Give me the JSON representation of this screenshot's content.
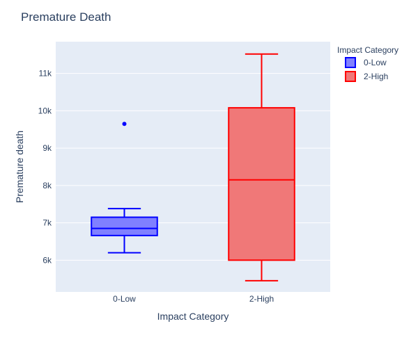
{
  "chart_data": {
    "type": "box",
    "title": "Premature Death",
    "xlabel": "Impact Category",
    "ylabel": "Premature death",
    "categories": [
      "0-Low",
      "2-High"
    ],
    "ylim": [
      5150,
      11850
    ],
    "yticks": [
      6000,
      7000,
      8000,
      9000,
      10000,
      11000
    ],
    "ytick_labels": [
      "6k",
      "7k",
      "8k",
      "9k",
      "10k",
      "11k"
    ],
    "grid": true,
    "legend": {
      "title": "Impact Category",
      "position": "top-right",
      "entries": [
        "0-Low",
        "2-High"
      ]
    },
    "series": [
      {
        "name": "0-Low",
        "category": "0-Low",
        "color": "#0000ff",
        "fill": "#8080ff",
        "min": 6200,
        "q1": 6660,
        "median": 6850,
        "q3": 7150,
        "max": 7380,
        "outliers": [
          9650
        ]
      },
      {
        "name": "2-High",
        "category": "2-High",
        "color": "#ff0000",
        "fill": "#f07878",
        "min": 5450,
        "q1": 6000,
        "median": 8150,
        "q3": 10080,
        "max": 11520,
        "outliers": []
      }
    ]
  }
}
